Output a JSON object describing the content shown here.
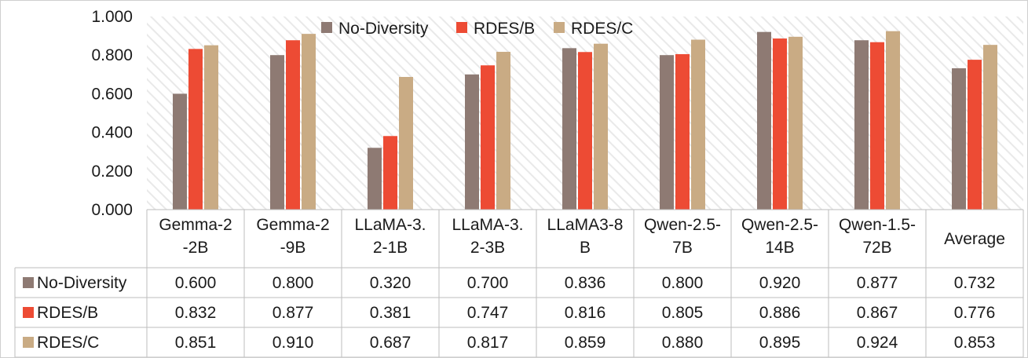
{
  "chart_data": {
    "type": "bar",
    "title": "",
    "xlabel": "",
    "ylabel": "",
    "ylim": [
      0,
      1.0
    ],
    "y_ticks": [
      "0.000",
      "0.200",
      "0.400",
      "0.600",
      "0.800",
      "1.000"
    ],
    "y_tick_values": [
      0,
      0.2,
      0.4,
      0.6,
      0.8,
      1.0
    ],
    "grid": false,
    "legend_position": "top",
    "categories": [
      [
        "Gemma-2",
        "-2B"
      ],
      [
        "Gemma-2",
        "-9B"
      ],
      [
        "LLaMA-3.",
        "2-1B"
      ],
      [
        "LLaMA-3.",
        "2-3B"
      ],
      [
        "LLaMA3-8",
        "B"
      ],
      [
        "Qwen-2.5-",
        "7B"
      ],
      [
        "Qwen-2.5-",
        "14B"
      ],
      [
        "Qwen-1.5-",
        "72B"
      ],
      [
        "Average"
      ]
    ],
    "series": [
      {
        "name": "No-Diversity",
        "color": "#8e7a73",
        "values": [
          0.6,
          0.8,
          0.32,
          0.7,
          0.836,
          0.8,
          0.92,
          0.877,
          0.732
        ],
        "labels": [
          "0.600",
          "0.800",
          "0.320",
          "0.700",
          "0.836",
          "0.800",
          "0.920",
          "0.877",
          "0.732"
        ]
      },
      {
        "name": "RDES/B",
        "color": "#ed4b34",
        "values": [
          0.832,
          0.877,
          0.381,
          0.747,
          0.816,
          0.805,
          0.886,
          0.867,
          0.776
        ],
        "labels": [
          "0.832",
          "0.877",
          "0.381",
          "0.747",
          "0.816",
          "0.805",
          "0.886",
          "0.867",
          "0.776"
        ]
      },
      {
        "name": "RDES/C",
        "color": "#c9ab84",
        "values": [
          0.851,
          0.91,
          0.687,
          0.817,
          0.859,
          0.88,
          0.895,
          0.924,
          0.853
        ],
        "labels": [
          "0.851",
          "0.910",
          "0.687",
          "0.817",
          "0.859",
          "0.880",
          "0.895",
          "0.924",
          "0.853"
        ]
      }
    ],
    "data_table": true
  }
}
